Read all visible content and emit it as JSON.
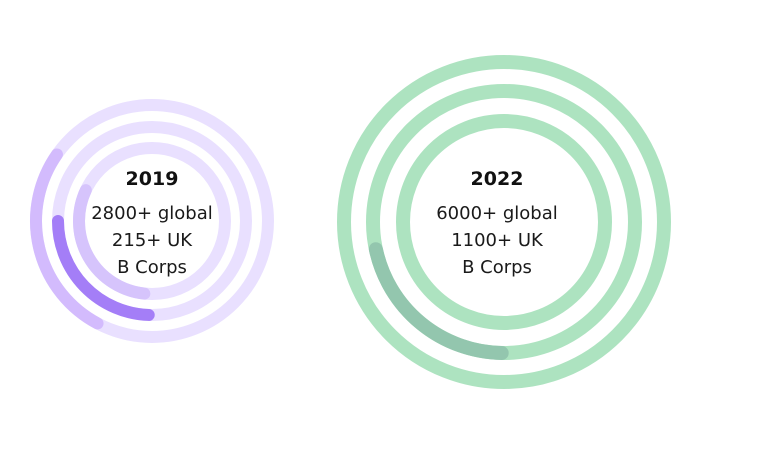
{
  "chart_data": [
    {
      "type": "radial-bar",
      "title": "2019",
      "labels": [
        "2800+ global",
        "215+ UK",
        "B Corps"
      ],
      "rings": [
        {
          "track_color": "#e9e0ff",
          "arc_color": "#d3bbfd",
          "arc_start_deg": 235,
          "arc_end_deg": 332
        },
        {
          "track_color": "#e9e0ff",
          "arc_color": "#a47ef7",
          "arc_start_deg": 270,
          "arc_end_deg": 358
        },
        {
          "track_color": "#e9e0ff",
          "arc_color": "#d6c4fc",
          "arc_start_deg": 245,
          "arc_end_deg": 354
        }
      ]
    },
    {
      "type": "radial-bar",
      "title": "2022",
      "labels": [
        "6000+ global",
        "1100+ UK",
        "B Corps"
      ],
      "rings": [
        {
          "track_color": "#ade3c0",
          "arc_color": "#ade3c0",
          "arc_start_deg": 0,
          "arc_end_deg": 0
        },
        {
          "track_color": "#ade3c0",
          "arc_color": "#93c6ae",
          "arc_start_deg": 282,
          "arc_end_deg": 359
        },
        {
          "track_color": "#ade3c0",
          "arc_color": "#ade3c0",
          "arc_start_deg": 0,
          "arc_end_deg": 0
        }
      ]
    }
  ]
}
